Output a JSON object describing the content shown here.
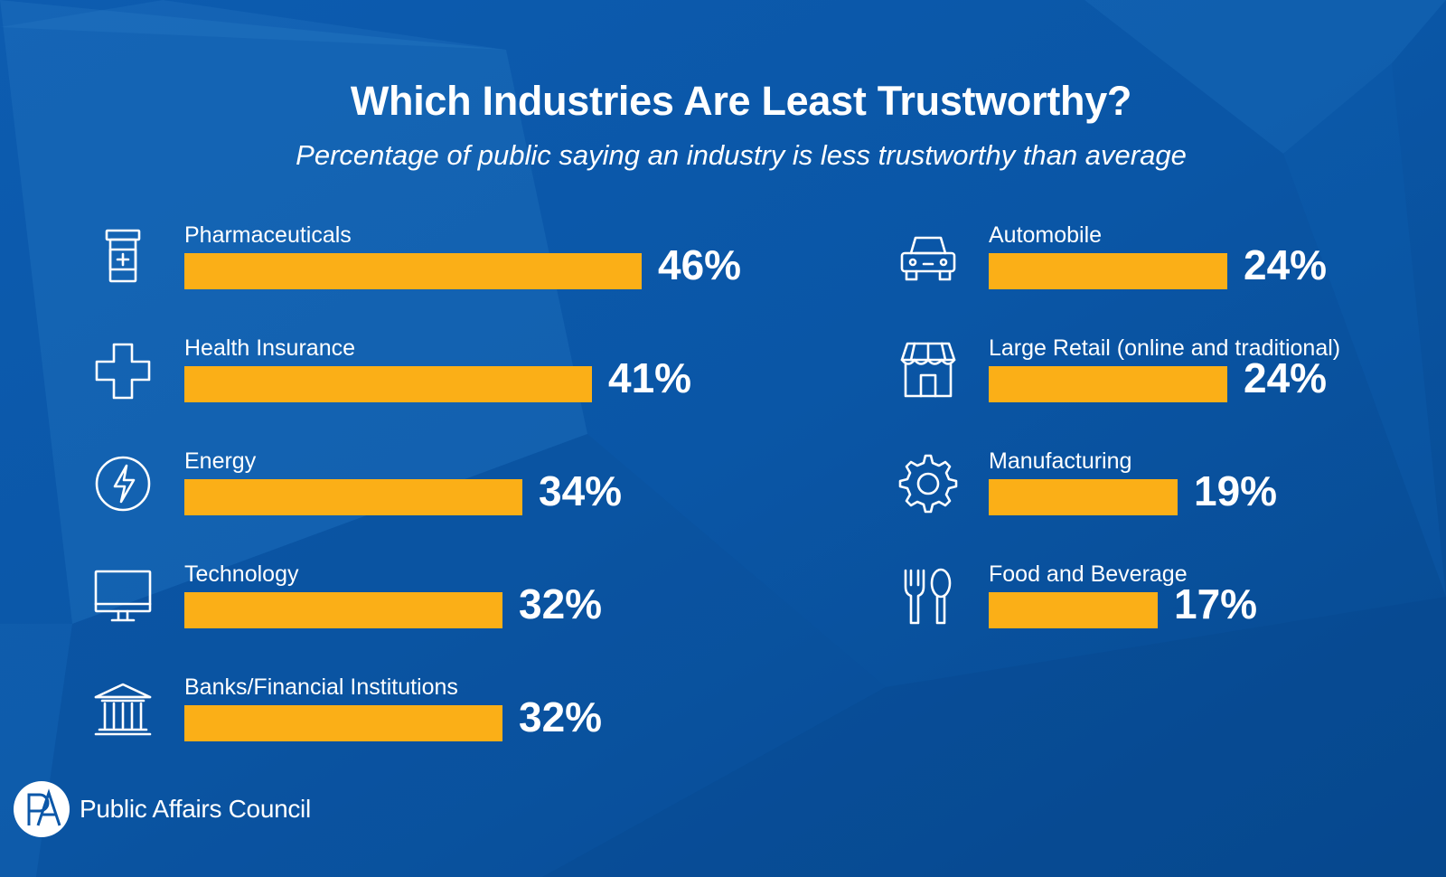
{
  "header": {
    "title": "Which Industries Are Least Trustworthy?",
    "subtitle": "Percentage of public saying an industry is less trustworthy than average"
  },
  "colors": {
    "background": "#0b57a8",
    "bar": "#fbaf17",
    "text": "#ffffff"
  },
  "chart_data": {
    "type": "bar",
    "orientation": "horizontal",
    "title": "Which Industries Are Least Trustworthy?",
    "subtitle": "Percentage of public saying an industry is less trustworthy than average",
    "unit": "%",
    "xlim": [
      0,
      100
    ],
    "columns": [
      {
        "items": [
          {
            "category": "Pharmaceuticals",
            "value": 46,
            "value_label": "46%",
            "icon": "pill-bottle-icon"
          },
          {
            "category": "Health Insurance",
            "value": 41,
            "value_label": "41%",
            "icon": "medical-cross-icon"
          },
          {
            "category": "Energy",
            "value": 34,
            "value_label": "34%",
            "icon": "lightning-bolt-icon"
          },
          {
            "category": "Technology",
            "value": 32,
            "value_label": "32%",
            "icon": "computer-monitor-icon"
          },
          {
            "category": "Banks/Financial Institutions",
            "value": 32,
            "value_label": "32%",
            "icon": "bank-building-icon"
          }
        ]
      },
      {
        "items": [
          {
            "category": "Automobile",
            "value": 24,
            "value_label": "24%",
            "icon": "car-icon"
          },
          {
            "category": "Large Retail (online and traditional)",
            "value": 24,
            "value_label": "24%",
            "icon": "storefront-icon"
          },
          {
            "category": "Manufacturing",
            "value": 19,
            "value_label": "19%",
            "icon": "gear-icon"
          },
          {
            "category": "Food and Beverage",
            "value": 17,
            "value_label": "17%",
            "icon": "fork-spoon-icon"
          }
        ]
      }
    ]
  },
  "footer": {
    "brand_name": "Public Affairs Council",
    "logo_letters": "PA",
    "logo_icon": "pac-logo-icon"
  }
}
